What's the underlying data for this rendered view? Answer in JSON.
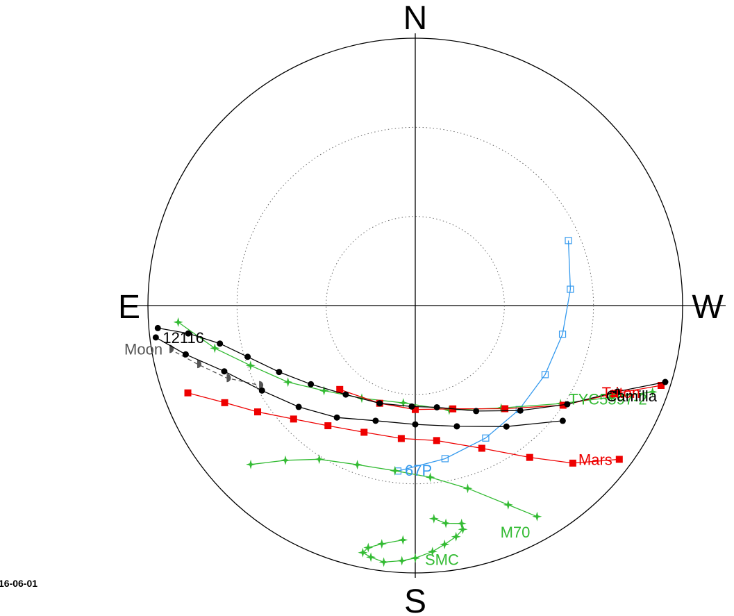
{
  "chart_data": {
    "type": "scatter",
    "projection": "polar sky map (azimuth/altitude)",
    "directions": {
      "north": "N",
      "south": "S",
      "east": "E",
      "west": "W"
    },
    "date_label": "16-06-01",
    "altitude_circles": [
      30,
      60
    ],
    "grid": true,
    "legend": "none (labels at track ends)",
    "series": [
      {
        "name": "67P",
        "color": "#3399ee",
        "marker": "open-square",
        "line": "solid",
        "points": [
          [
            293,
            34
          ],
          [
            276,
            37.5
          ],
          [
            259,
            39.5
          ],
          [
            242,
            40.5
          ],
          [
            225,
            40.5
          ],
          [
            208,
            39.5
          ],
          [
            191,
            37.5
          ],
          [
            174,
            34
          ]
        ],
        "label_at": "end"
      },
      {
        "name": "Moon",
        "color": "#555555",
        "marker": "half-moon",
        "line": "dashed",
        "points": [
          [
            100,
            6
          ],
          [
            105,
            14
          ],
          [
            111,
            22
          ],
          [
            117,
            31
          ]
        ],
        "label_at": "start"
      },
      {
        "name": "TYC5597-2",
        "color": "#33bb33",
        "marker": "star",
        "line": "solid",
        "points": [
          [
            -110,
            5
          ],
          [
            -115,
            17
          ],
          [
            -124,
            31
          ],
          [
            -140,
            45
          ],
          [
            -162,
            53
          ],
          [
            -187,
            57
          ],
          [
            -210,
            54
          ],
          [
            -227,
            48
          ],
          [
            -239,
            40
          ],
          [
            -250,
            31
          ],
          [
            -258,
            21
          ],
          [
            -266,
            10
          ]
        ],
        "label_at": "start"
      },
      {
        "name": "Triton",
        "color": "#ee0000",
        "marker": "square",
        "line": "solid",
        "points": [
          [
            -108,
            3
          ],
          [
            -114,
            17
          ],
          [
            -124,
            30
          ],
          [
            -139,
            44
          ],
          [
            -160,
            53
          ],
          [
            -180,
            55
          ],
          [
            -200,
            55
          ],
          [
            -222,
            52
          ]
        ],
        "label_at": "start"
      },
      {
        "name": "Camilla",
        "color": "#000000",
        "marker": "dot",
        "line": "solid",
        "points": [
          [
            -107,
            2
          ],
          [
            -113,
            16
          ],
          [
            -123,
            29
          ],
          [
            -135,
            40
          ],
          [
            -150,
            49
          ],
          [
            -168,
            55
          ],
          [
            -182,
            56
          ],
          [
            -200,
            55
          ],
          [
            -218,
            52
          ],
          [
            -233,
            46
          ],
          [
            -244,
            39
          ],
          [
            -253,
            31
          ],
          [
            -259,
            23
          ],
          [
            -263,
            13
          ],
          [
            -265,
            3
          ]
        ],
        "label_at": "start"
      },
      {
        "name": "12116",
        "color": "#000000",
        "marker": "dot",
        "line": "solid",
        "points": [
          [
            -128,
            27
          ],
          [
            -143,
            39
          ],
          [
            -161,
            47
          ],
          [
            -180,
            50
          ],
          [
            -199,
            49
          ],
          [
            -215,
            44
          ],
          [
            -229,
            38
          ],
          [
            -241,
            31
          ],
          [
            -251,
            22
          ],
          [
            -258,
            11
          ],
          [
            -263,
            2
          ]
        ],
        "label_at": "end"
      },
      {
        "name": "Mars",
        "color": "#ee0000",
        "marker": "square",
        "line": "solid",
        "points": [
          [
            -127,
            4
          ],
          [
            -135,
            15
          ],
          [
            -143,
            26
          ],
          [
            -155,
            37
          ],
          [
            -171,
            44
          ],
          [
            -186,
            45
          ],
          [
            -202,
            44
          ],
          [
            -216,
            40
          ],
          [
            -227,
            34
          ],
          [
            -236,
            26
          ],
          [
            -243,
            18
          ],
          [
            -249,
            8
          ]
        ],
        "label_at": "start"
      },
      {
        "name": "M70",
        "color": "#33bb33",
        "marker": "star",
        "line": "solid",
        "points": [
          [
            -150,
            8
          ],
          [
            -155,
            16
          ],
          [
            -164,
            26
          ],
          [
            -175,
            32
          ],
          [
            -187,
            34
          ],
          [
            -200,
            33
          ],
          [
            -212,
            29
          ],
          [
            -220,
            22
          ],
          [
            -226,
            13
          ]
        ],
        "label_at": "start"
      },
      {
        "name": "SMC",
        "color": "#33bb33",
        "marker": "star",
        "line": "solid",
        "points": [
          [
            -175,
            18
          ],
          [
            -172,
            16
          ],
          [
            -168,
            15
          ],
          [
            -168,
            13
          ],
          [
            -170,
            11
          ],
          [
            -173,
            9
          ],
          [
            -176,
            7
          ],
          [
            -180,
            5
          ],
          [
            -183,
            4
          ],
          [
            -187,
            3
          ],
          [
            -190,
            4
          ],
          [
            -192,
            5
          ],
          [
            -191,
            7
          ],
          [
            -188,
            9
          ],
          [
            -183,
            11
          ]
        ],
        "label_at": "middle"
      }
    ]
  }
}
